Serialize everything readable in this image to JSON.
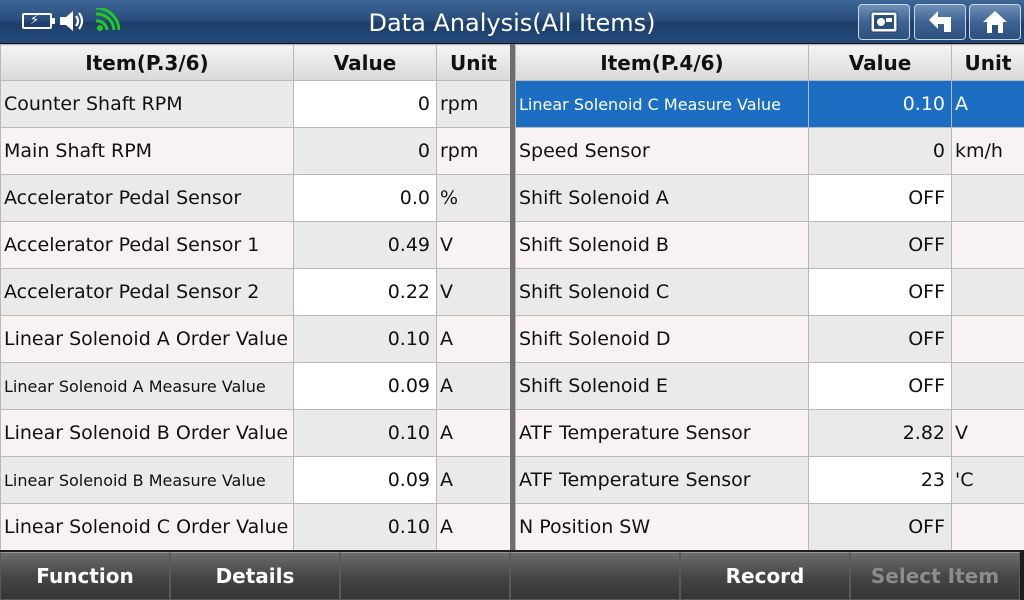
{
  "header": {
    "title": "Data Analysis(All Items)",
    "status_icons": [
      "battery-icon",
      "volume-icon",
      "wifi-icon"
    ],
    "buttons": [
      "screenshot-icon",
      "back-icon",
      "home-icon"
    ]
  },
  "left_table": {
    "headers": {
      "item": "Item(P.3/6)",
      "value": "Value",
      "unit": "Unit"
    },
    "rows": [
      {
        "item": "Counter Shaft RPM",
        "value": "0",
        "unit": "rpm"
      },
      {
        "item": "Main Shaft RPM",
        "value": "0",
        "unit": "rpm"
      },
      {
        "item": "Accelerator Pedal Sensor",
        "value": "0.0",
        "unit": "%"
      },
      {
        "item": "Accelerator Pedal Sensor 1",
        "value": "0.49",
        "unit": "V"
      },
      {
        "item": "Accelerator Pedal Sensor 2",
        "value": "0.22",
        "unit": "V"
      },
      {
        "item": "Linear Solenoid  A Order Value",
        "value": "0.10",
        "unit": "A"
      },
      {
        "item": "Linear Solenoid  A Measure Value",
        "value": "0.09",
        "unit": "A"
      },
      {
        "item": "Linear Solenoid  B Order Value",
        "value": "0.10",
        "unit": "A"
      },
      {
        "item": "Linear Solenoid  B Measure Value",
        "value": "0.09",
        "unit": "A"
      },
      {
        "item": "Linear Solenoid  C Order Value",
        "value": "0.10",
        "unit": "A"
      }
    ]
  },
  "right_table": {
    "headers": {
      "item": "Item(P.4/6)",
      "value": "Value",
      "unit": "Unit"
    },
    "rows": [
      {
        "item": "Linear Solenoid  C Measure Value",
        "value": "0.10",
        "unit": "A"
      },
      {
        "item": "Speed Sensor",
        "value": "0",
        "unit": "km/h"
      },
      {
        "item": "Shift Solenoid A",
        "value": "OFF",
        "unit": ""
      },
      {
        "item": "Shift Solenoid B",
        "value": "OFF",
        "unit": ""
      },
      {
        "item": "Shift Solenoid C",
        "value": "OFF",
        "unit": ""
      },
      {
        "item": "Shift Solenoid  D",
        "value": "OFF",
        "unit": ""
      },
      {
        "item": "Shift Solenoid  E",
        "value": "OFF",
        "unit": ""
      },
      {
        "item": "ATF Temperature Sensor",
        "value": "2.82",
        "unit": "V"
      },
      {
        "item": "ATF Temperature Sensor",
        "value": "23",
        "unit": "'C"
      },
      {
        "item": "N Position SW",
        "value": "OFF",
        "unit": ""
      }
    ]
  },
  "footer": {
    "function": "Function",
    "details": "Details",
    "blank1": "",
    "blank2": "",
    "record": "Record",
    "select_item": "Select Item"
  },
  "colors": {
    "header_blue": "#2a4f7e",
    "selected_row": "#1c6ec2",
    "wifi_green": "#22c822"
  }
}
